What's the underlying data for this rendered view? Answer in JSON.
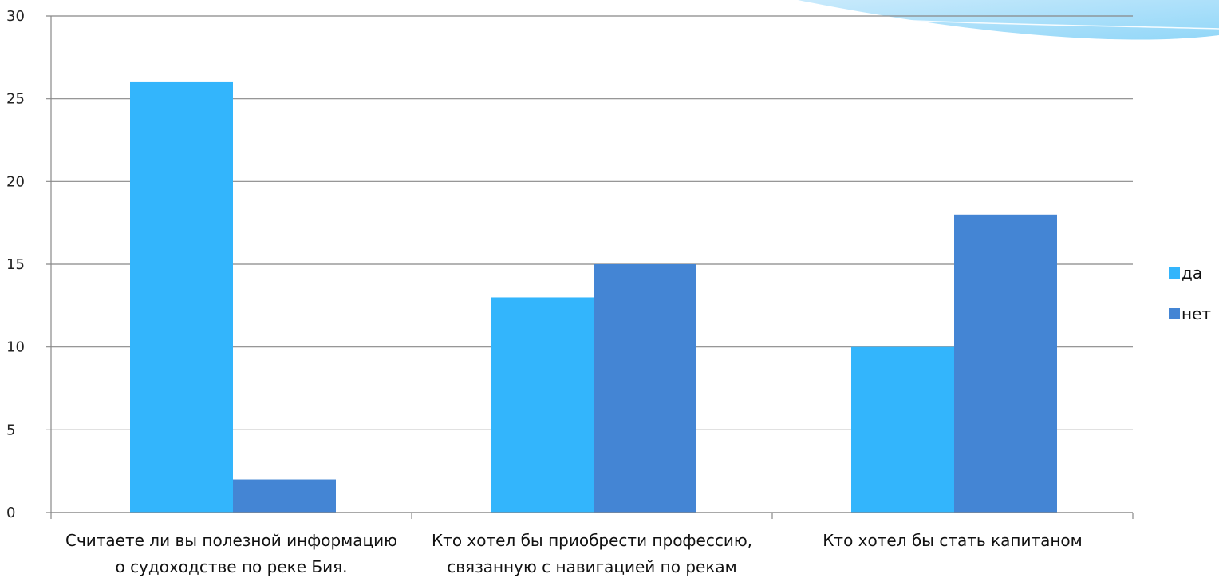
{
  "chart_data": {
    "type": "bar",
    "categories": [
      [
        "Считаете ли вы полезной информацию",
        "о судоходстве по реке Бия."
      ],
      [
        "Кто хотел бы приобрести профессию,",
        "связанную с навигацией по рекам"
      ],
      [
        "Кто хотел бы стать капитаном"
      ]
    ],
    "series": [
      {
        "name": "да",
        "color": "#33b5fc",
        "values": [
          26,
          13,
          10
        ]
      },
      {
        "name": "нет",
        "color": "#4485d4",
        "values": [
          2,
          15,
          18
        ]
      }
    ],
    "yticks": [
      "0",
      "5",
      "10",
      "15",
      "20",
      "25",
      "30"
    ],
    "ylim": [
      0,
      30
    ],
    "grid": true,
    "legend_position": "right"
  }
}
